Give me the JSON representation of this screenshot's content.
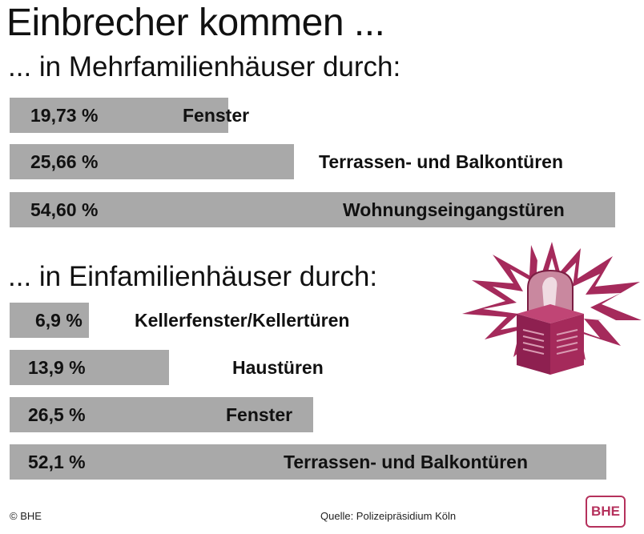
{
  "title": "Einbrecher kommen ...",
  "chart_data": [
    {
      "type": "bar",
      "title": "... in Mehrfamilienhäuser durch:",
      "categories": [
        "Fenster",
        "Terrassen- und Balkontüren",
        "Wohnungseingangstüren"
      ],
      "values": [
        19.73,
        25.66,
        54.6
      ],
      "value_labels": [
        "19,73 %",
        "25,66 %",
        "54,60 %"
      ],
      "unit": "%"
    },
    {
      "type": "bar",
      "title": "... in Einfamilienhäuser durch:",
      "categories": [
        "Kellerfenster/Kellertüren",
        "Haustüren",
        "Fenster",
        "Terrassen- und Balkontüren"
      ],
      "values": [
        6.9,
        13.9,
        26.5,
        52.1
      ],
      "value_labels": [
        "6,9 %",
        "13,9 %",
        "26,5 %",
        "52,1 %"
      ],
      "unit": "%"
    }
  ],
  "footer": {
    "copyright": "© BHE",
    "source": "Quelle: Polizeipräsidium Köln",
    "logo": "BHE"
  },
  "colors": {
    "bar": "#a9a9a9",
    "siren": "#a52a5b",
    "brand": "#b5315c"
  },
  "icons": {
    "siren": "alarm-siren-icon"
  }
}
